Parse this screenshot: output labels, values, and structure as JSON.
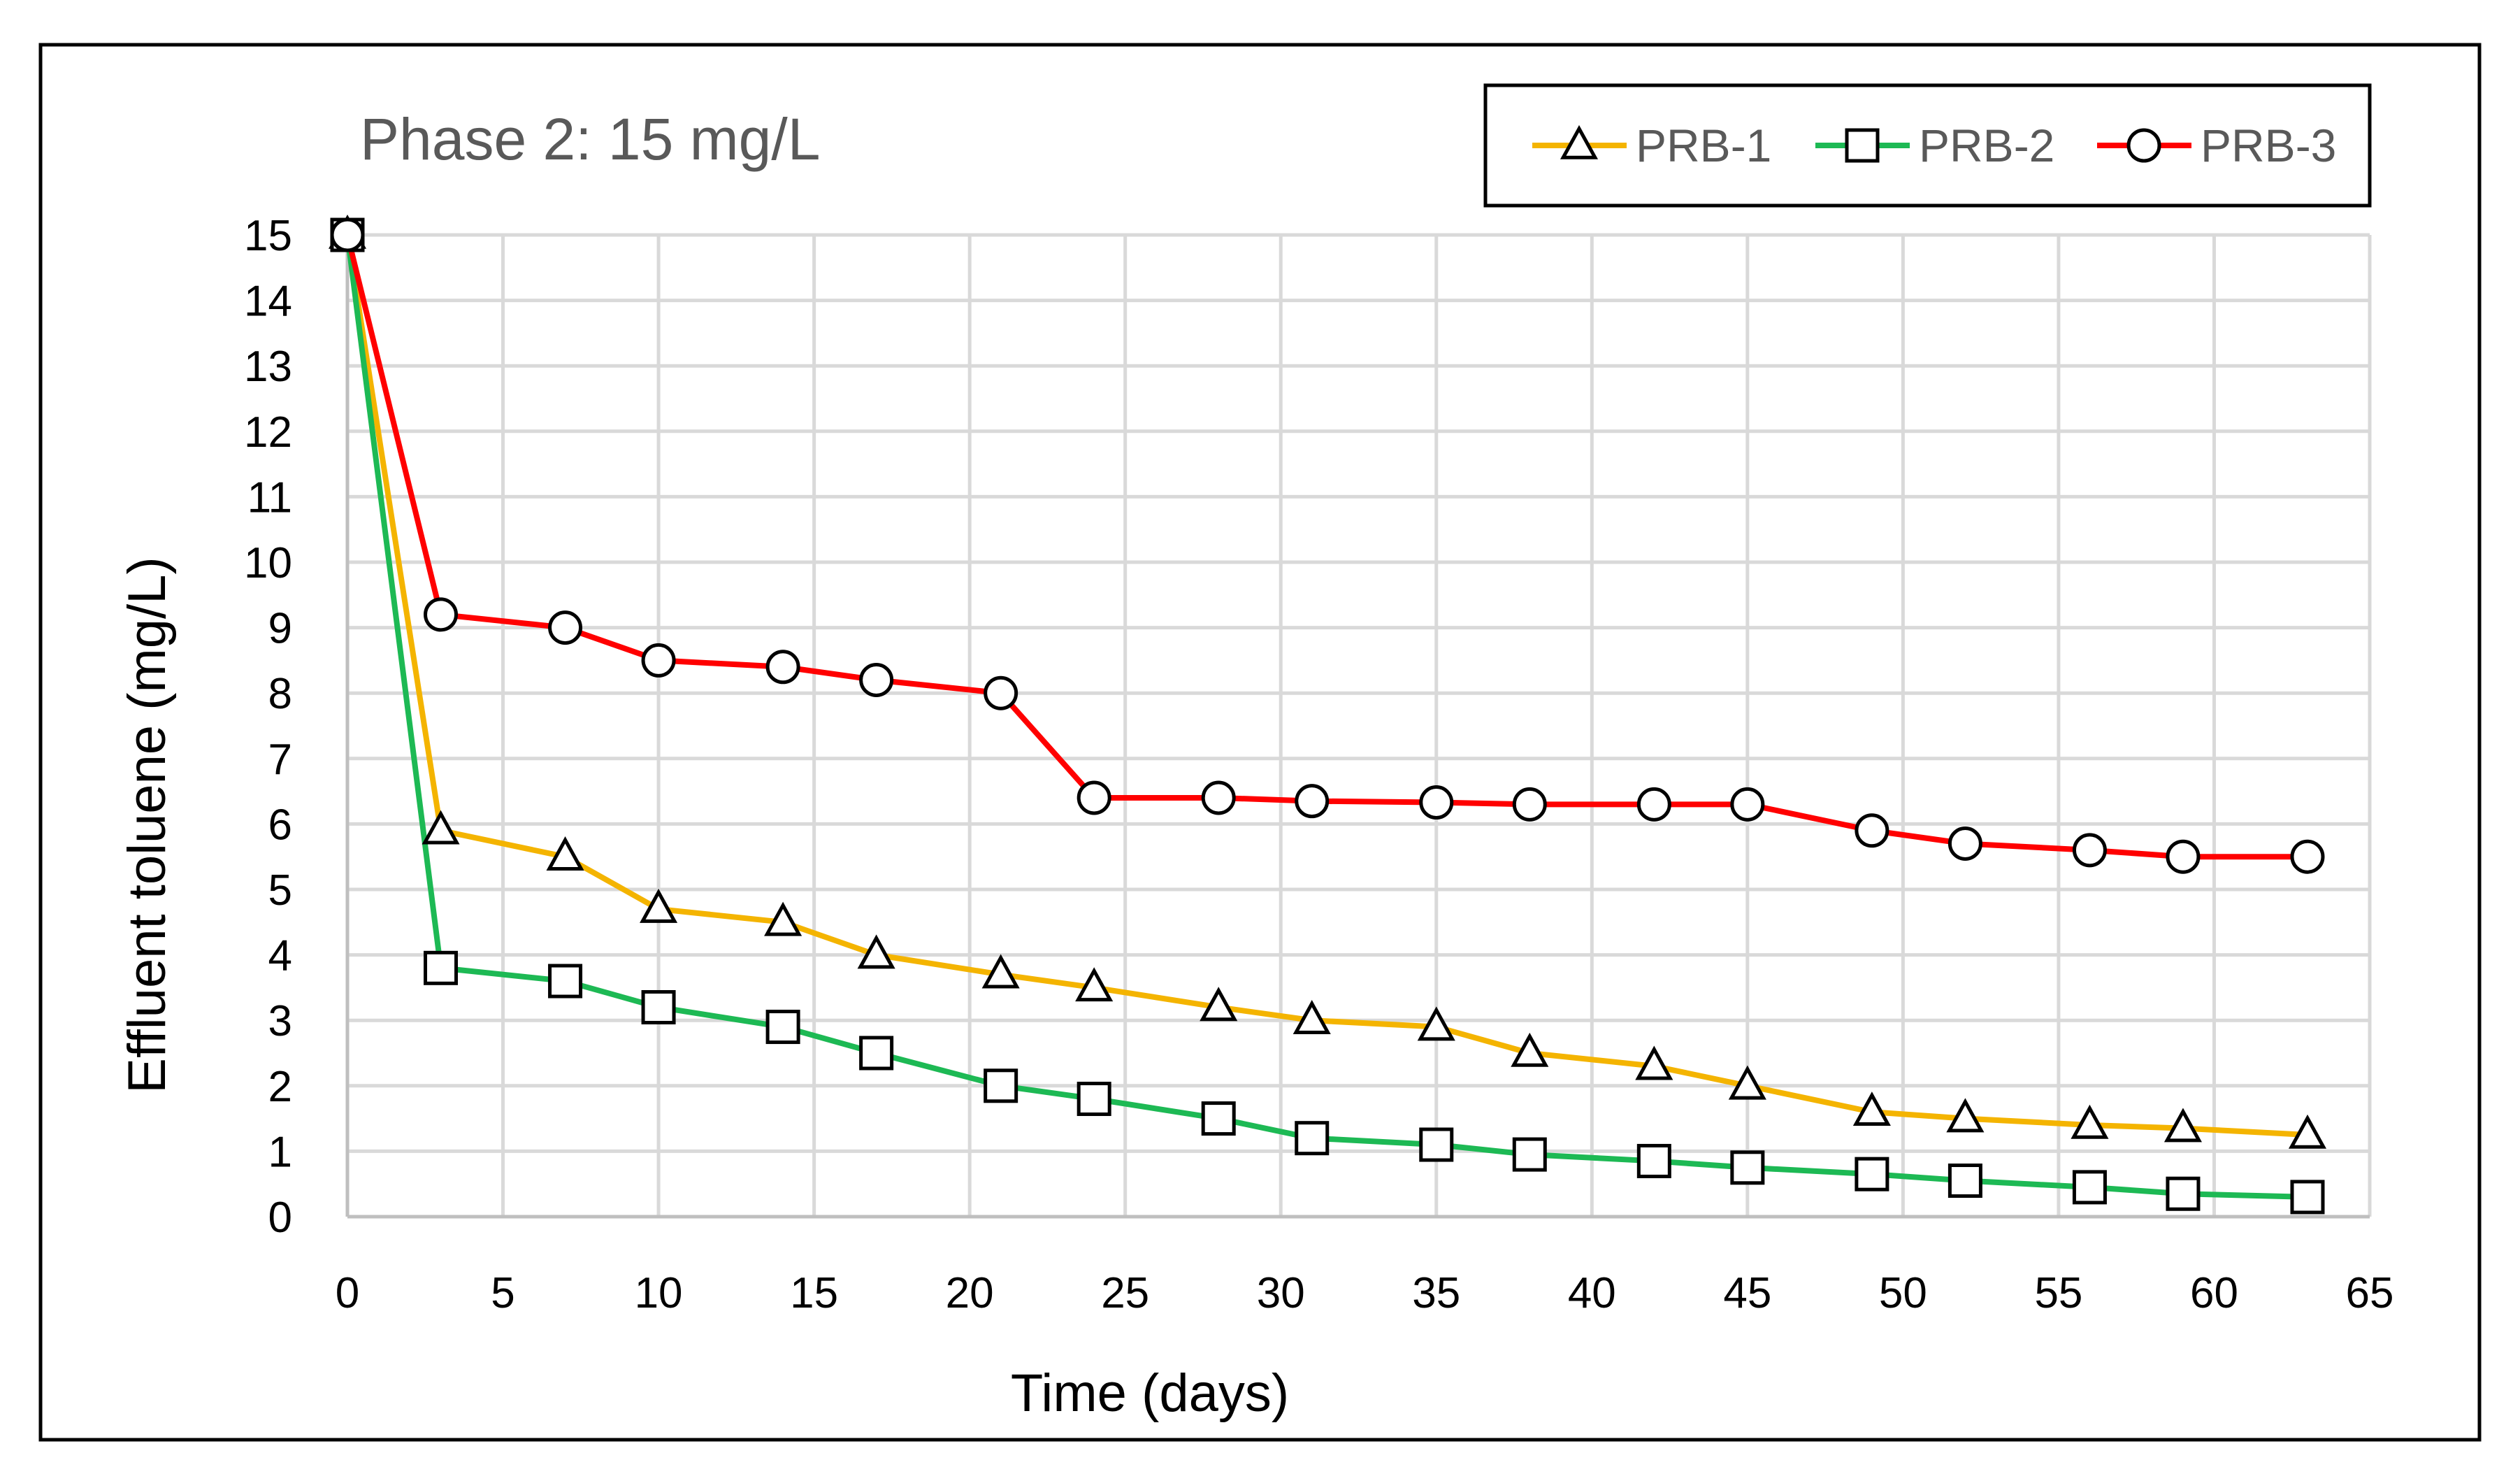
{
  "chart_data": {
    "type": "line",
    "title": "Phase 2: 15 mg/L",
    "xlabel": "Time (days)",
    "ylabel": "Effluent toluene (mg/L)",
    "xlim": [
      0,
      65
    ],
    "ylim": [
      0,
      15
    ],
    "xticks": [
      0,
      5,
      10,
      15,
      20,
      25,
      30,
      35,
      40,
      45,
      50,
      55,
      60,
      65
    ],
    "yticks": [
      0,
      1,
      2,
      3,
      4,
      5,
      6,
      7,
      8,
      9,
      10,
      11,
      12,
      13,
      14,
      15
    ],
    "grid": true,
    "legend_position": "top-right",
    "series": [
      {
        "name": "PRB-1",
        "color": "#f4b400",
        "marker": "triangle",
        "x": [
          0,
          3,
          7,
          10,
          14,
          17,
          21,
          24,
          28,
          31,
          35,
          38,
          42,
          45,
          49,
          52,
          56,
          59,
          63
        ],
        "y": [
          15,
          5.9,
          5.5,
          4.7,
          4.5,
          4.0,
          3.7,
          3.5,
          3.2,
          3.0,
          2.9,
          2.5,
          2.3,
          2.0,
          1.6,
          1.5,
          1.4,
          1.35,
          1.25
        ]
      },
      {
        "name": "PRB-2",
        "color": "#1db954",
        "marker": "square",
        "x": [
          0,
          3,
          7,
          10,
          14,
          17,
          21,
          24,
          28,
          31,
          35,
          38,
          42,
          45,
          49,
          52,
          56,
          59,
          63
        ],
        "y": [
          15,
          3.8,
          3.6,
          3.2,
          2.9,
          2.5,
          2.0,
          1.8,
          1.5,
          1.2,
          1.1,
          0.95,
          0.85,
          0.75,
          0.65,
          0.55,
          0.45,
          0.35,
          0.3
        ]
      },
      {
        "name": "PRB-3",
        "color": "#ff0000",
        "marker": "circle",
        "x": [
          0,
          3,
          7,
          10,
          14,
          17,
          21,
          24,
          28,
          31,
          35,
          38,
          42,
          45,
          49,
          52,
          56,
          59,
          63
        ],
        "y": [
          15,
          9.2,
          9.0,
          8.5,
          8.4,
          8.2,
          8.0,
          6.4,
          6.4,
          6.35,
          6.33,
          6.3,
          6.3,
          6.3,
          5.9,
          5.7,
          5.6,
          5.5,
          5.5
        ]
      }
    ]
  }
}
